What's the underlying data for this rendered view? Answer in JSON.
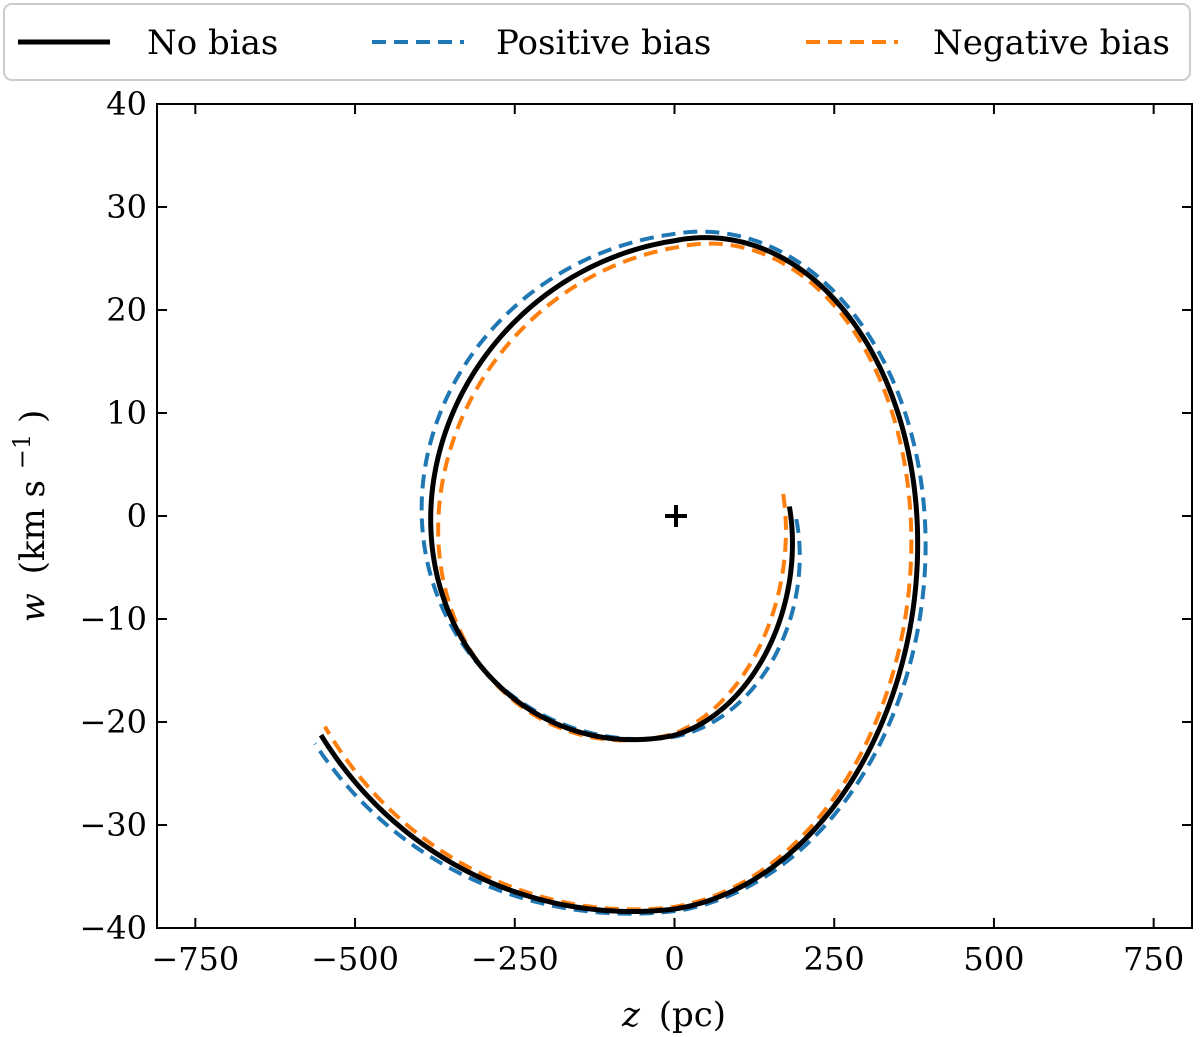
{
  "chart_data": {
    "type": "line",
    "title": "",
    "xlabel": {
      "symbol": "z",
      "unit": "(pc)"
    },
    "ylabel": {
      "symbol": "w",
      "unit": "(km s",
      "exponent": "−1",
      "close": ")"
    },
    "xlim": [
      -810,
      810
    ],
    "ylim": [
      -40,
      40
    ],
    "xticks": [
      -750,
      -500,
      -250,
      0,
      250,
      500,
      750
    ],
    "xtick_labels": [
      "−750",
      "−500",
      "−250",
      "0",
      "250",
      "500",
      "750"
    ],
    "yticks": [
      -40,
      -30,
      -20,
      -10,
      0,
      10,
      20,
      30,
      40
    ],
    "ytick_labels": [
      "−40",
      "−30",
      "−20",
      "−10",
      "0",
      "10",
      "20",
      "30",
      "40"
    ],
    "grid": false,
    "legend_position": "top, outside, spanning width",
    "center_marker": {
      "z": 0,
      "w": 0,
      "symbol": "+"
    },
    "spiral_params": {
      "theta_start": 0.0,
      "theta_end": 9.0,
      "base_radius": 0.39,
      "growth": 0.068
    },
    "series": [
      {
        "name": "No bias",
        "color": "#000000",
        "dash": "solid",
        "width": 5,
        "z_scale": 1.0,
        "w_scale": 1.0,
        "phase": 0.0,
        "z_amp": 790,
        "w_amp": 50
      },
      {
        "name": "Positive bias",
        "color": "#1f77b4",
        "dash": "dashed",
        "width": 4,
        "z_scale": 1.0,
        "w_scale": 1.0,
        "phase": 0.0,
        "z_amp": 805,
        "w_amp": 49
      },
      {
        "name": "Negative bias",
        "color": "#ff7f0e",
        "dash": "dashed",
        "width": 4,
        "z_scale": 1.0,
        "w_scale": 1.0,
        "phase": 0.0,
        "z_amp": 780,
        "w_amp": 51
      }
    ]
  }
}
